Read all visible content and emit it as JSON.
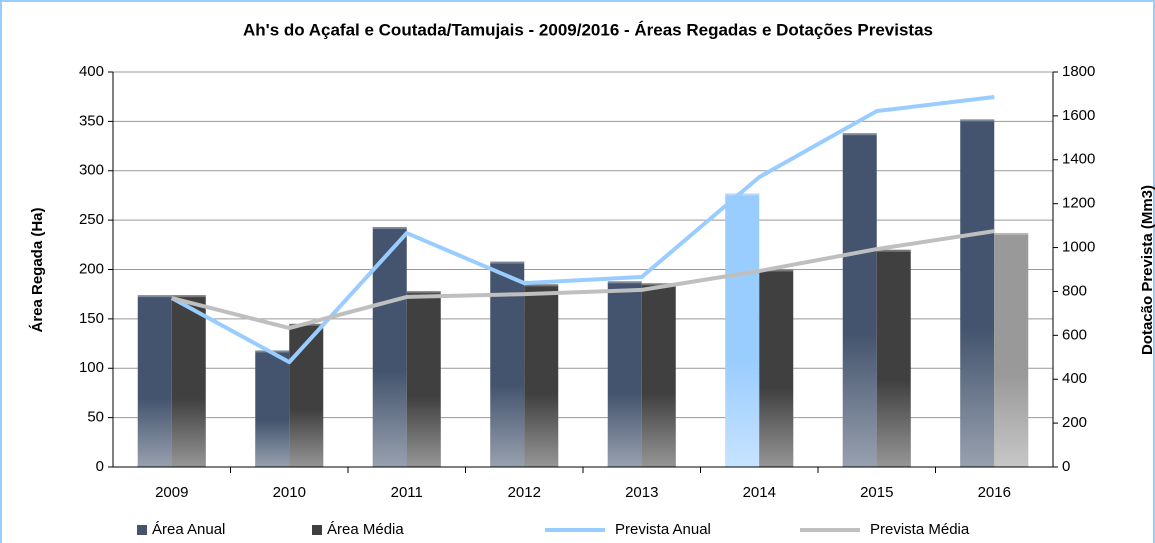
{
  "chart_data": {
    "type": "bar",
    "title": "Ah's do Açafal e Coutada/Tamujais - 2009/2016 - Áreas Regadas e Dotações Previstas",
    "y_label": "Área Regada (Ha)",
    "y2_label": "Dotacão Prevista (Mm3)",
    "categories": [
      "2009",
      "2010",
      "2011",
      "2012",
      "2013",
      "2014",
      "2015",
      "2016"
    ],
    "series": [
      {
        "name": "Área Anual",
        "type": "bar",
        "color": "#44546e",
        "colors": [
          "#44546e",
          "#44546e",
          "#44546e",
          "#44546e",
          "#44546e",
          "#99ccff",
          "#44546e",
          "#44546e"
        ],
        "values": [
          174,
          118,
          243,
          208,
          188,
          277,
          338,
          352
        ]
      },
      {
        "name": "Área Média",
        "type": "bar",
        "color": "#404040",
        "colors": [
          "#404040",
          "#404040",
          "#404040",
          "#404040",
          "#404040",
          "#404040",
          "#404040",
          "#999999"
        ],
        "values": [
          174,
          145,
          178,
          185,
          186,
          200,
          220,
          237
        ]
      },
      {
        "name": "Prevista Anual",
        "type": "line",
        "axis": "y2",
        "color": "#99ccff",
        "values": [
          770,
          478,
          1066,
          838,
          866,
          1321,
          1622,
          1686
        ]
      },
      {
        "name": "Prevista Média",
        "type": "line",
        "axis": "y2",
        "color": "#bfbfbf",
        "values": [
          770,
          633,
          775,
          788,
          807,
          893,
          993,
          1075
        ]
      }
    ],
    "ylim": [
      0,
      400
    ],
    "yticks": [
      0,
      50,
      100,
      150,
      200,
      250,
      300,
      350,
      400
    ],
    "y2lim": [
      0,
      1800
    ],
    "y2ticks": [
      0,
      200,
      400,
      600,
      800,
      1000,
      1200,
      1400,
      1600,
      1800
    ],
    "grid": true,
    "legend": "bottom"
  }
}
